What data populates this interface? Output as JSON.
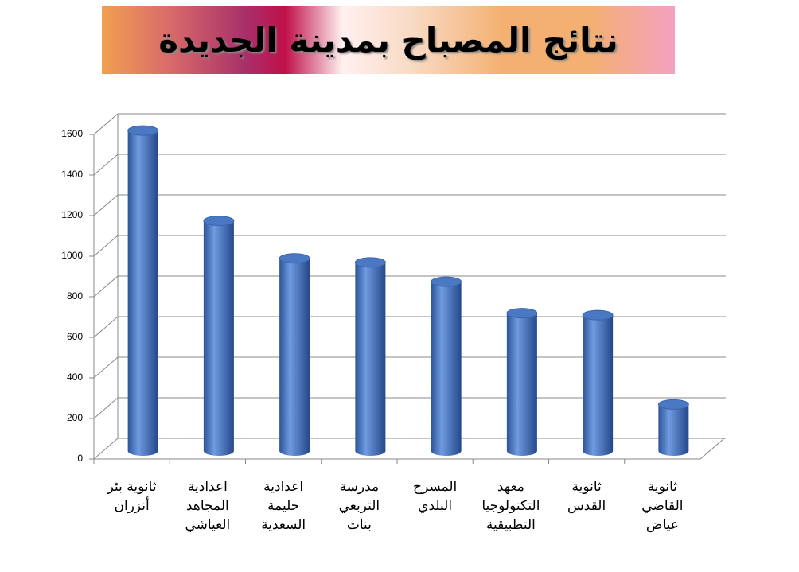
{
  "chart_data": {
    "type": "bar",
    "title": "نتائج المصباح بمدينة الجديدة",
    "categories": [
      "ثانوية بئر\nأنزران",
      "اعدادية\nالمجاهد\nالعياشي",
      "اعدادية\nحليمة\nالسعدية",
      "مدرسة\nالتربعي\nبنات",
      "المسرح\nالبلدي",
      "معهد\nالتكنولوجيا\nالتطبيقية",
      "ثانوية\nالقدس",
      "ثانوية\nالقاضي\nعياض"
    ],
    "values": [
      1580,
      1135,
      950,
      930,
      835,
      680,
      670,
      230
    ],
    "color": "#4a78c2",
    "ylim": [
      0,
      1600
    ],
    "yticks": [
      0,
      200,
      400,
      600,
      800,
      1000,
      1200,
      1400,
      1600
    ],
    "grid": true
  }
}
